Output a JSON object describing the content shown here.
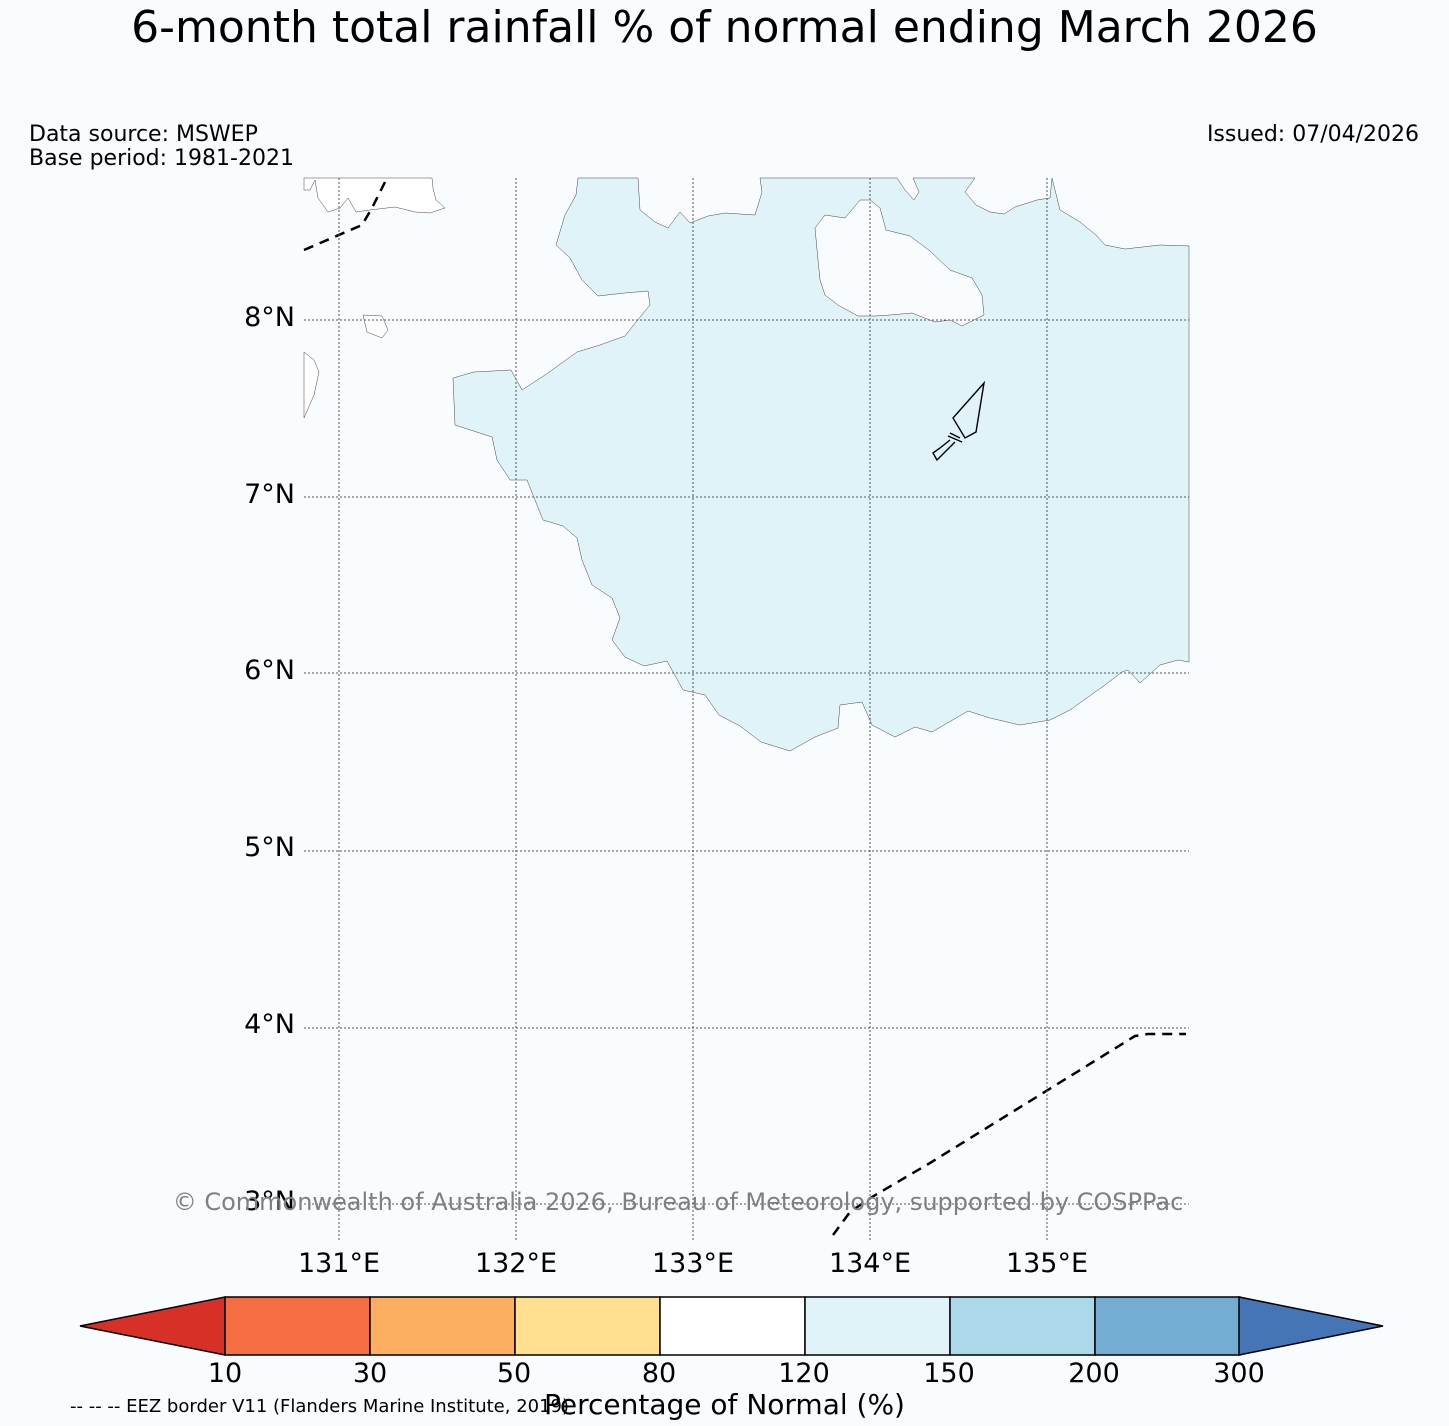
{
  "title": "6-month total rainfall % of normal ending March 2026",
  "data_source": "Data source: MSWEP",
  "base_period": "Base period: 1981-2021",
  "issued": "Issued: 07/04/2026",
  "map": {
    "lat_labels": [
      "8°N",
      "7°N",
      "6°N",
      "5°N",
      "4°N",
      "3°N"
    ],
    "lon_labels": [
      "131°E",
      "132°E",
      "133°E",
      "134°E",
      "135°E"
    ],
    "land_color": "#ffffff",
    "anomaly_fill_color": "#e0f3f8",
    "anomaly_category": "120-150"
  },
  "colorbar": {
    "label": "Percentage of Normal (%)",
    "ticks": [
      "10",
      "30",
      "50",
      "80",
      "120",
      "150",
      "200",
      "300"
    ],
    "colors": [
      "#d73027",
      "#f46d43",
      "#fdae61",
      "#fee090",
      "#ffffff",
      "#e0f3f8",
      "#abd9e9",
      "#74add1",
      "#4575b4"
    ]
  },
  "copyright": "© Commonwealth of Australia 2026, Bureau of Meteorology, supported by COSPPac",
  "eez_legend": "-- -- -- EEZ border V11 (Flanders Marine Institute, 2019)"
}
